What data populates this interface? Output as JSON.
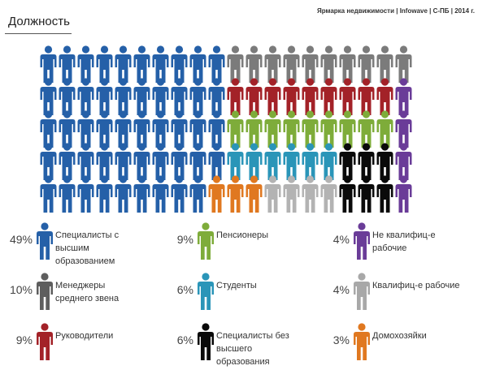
{
  "source": "Ярмарка недвижимости | Infowave | С-ПБ | 2014 г.",
  "title": "Должность",
  "chart_data": {
    "type": "pictogram",
    "unit": "icon",
    "rows": 5,
    "cols": 20,
    "categories": [
      {
        "label": "Специалисты с высшим образованием",
        "value": 49,
        "pct": "49%",
        "color": "#2560a8"
      },
      {
        "label": "Менеджеры среднего звена",
        "value": 10,
        "pct": "10%",
        "color": "#7b7b7b"
      },
      {
        "label": "Руководители",
        "value": 9,
        "pct": "9%",
        "color": "#a32228"
      },
      {
        "label": "Пенсионеры",
        "value": 9,
        "pct": "9%",
        "color": "#7eac3a"
      },
      {
        "label": "Студенты",
        "value": 6,
        "pct": "6%",
        "color": "#2a95b8"
      },
      {
        "label": "Специалисты без высшего образования",
        "value": 6,
        "pct": "6%",
        "color": "#0a0a0a"
      },
      {
        "label": "Не квалифиц-е рабочие",
        "value": 4,
        "pct": "4%",
        "color": "#6a3c98"
      },
      {
        "label": "Квалифиц-е рабочие",
        "value": 4,
        "pct": "4%",
        "color": "#b3b3b3"
      },
      {
        "label": "Домохозяйки",
        "value": 3,
        "pct": "3%",
        "color": "#e07820"
      }
    ],
    "grid_rows": [
      [
        "Специалисты с высшим образованием",
        "Специалисты с высшим образованием",
        "Специалисты с высшим образованием",
        "Специалисты с высшим образованием",
        "Специалисты с высшим образованием",
        "Специалисты с высшим образованием",
        "Специалисты с высшим образованием",
        "Специалисты с высшим образованием",
        "Специалисты с высшим образованием",
        "Специалисты с высшим образованием",
        "Менеджеры среднего звена",
        "Менеджеры среднего звена",
        "Менеджеры среднего звена",
        "Менеджеры среднего звена",
        "Менеджеры среднего звена",
        "Менеджеры среднего звена",
        "Менеджеры среднего звена",
        "Менеджеры среднего звена",
        "Менеджеры среднего звена",
        "Менеджеры среднего звена"
      ],
      [
        "Специалисты с высшим образованием",
        "Специалисты с высшим образованием",
        "Специалисты с высшим образованием",
        "Специалисты с высшим образованием",
        "Специалисты с высшим образованием",
        "Специалисты с высшим образованием",
        "Специалисты с высшим образованием",
        "Специалисты с высшим образованием",
        "Специалисты с высшим образованием",
        "Специалисты с высшим образованием",
        "Руководители",
        "Руководители",
        "Руководители",
        "Руководители",
        "Руководители",
        "Руководители",
        "Руководители",
        "Руководители",
        "Руководители",
        "Не квалифиц-е рабочие"
      ],
      [
        "Специалисты с высшим образованием",
        "Специалисты с высшим образованием",
        "Специалисты с высшим образованием",
        "Специалисты с высшим образованием",
        "Специалисты с высшим образованием",
        "Специалисты с высшим образованием",
        "Специалисты с высшим образованием",
        "Специалисты с высшим образованием",
        "Специалисты с высшим образованием",
        "Специалисты с высшим образованием",
        "Пенсионеры",
        "Пенсионеры",
        "Пенсионеры",
        "Пенсионеры",
        "Пенсионеры",
        "Пенсионеры",
        "Пенсионеры",
        "Пенсионеры",
        "Пенсионеры",
        "Не квалифиц-е рабочие"
      ],
      [
        "Специалисты с высшим образованием",
        "Специалисты с высшим образованием",
        "Специалисты с высшим образованием",
        "Специалисты с высшим образованием",
        "Специалисты с высшим образованием",
        "Специалисты с высшим образованием",
        "Специалисты с высшим образованием",
        "Специалисты с высшим образованием",
        "Специалисты с высшим образованием",
        "Специалисты с высшим образованием",
        "Студенты",
        "Студенты",
        "Студенты",
        "Студенты",
        "Студенты",
        "Студенты",
        "Специалисты без высшего образования",
        "Специалисты без высшего образования",
        "Специалисты без высшего образования",
        "Не квалифиц-е рабочие"
      ],
      [
        "Специалисты с высшим образованием",
        "Специалисты с высшим образованием",
        "Специалисты с высшим образованием",
        "Специалисты с высшим образованием",
        "Специалисты с высшим образованием",
        "Специалисты с высшим образованием",
        "Специалисты с высшим образованием",
        "Специалисты с высшим образованием",
        "Специалисты с высшим образованием",
        "Домохозяйки",
        "Домохозяйки",
        "Домохозяйки",
        "Квалифиц-е рабочие",
        "Квалифиц-е рабочие",
        "Квалифиц-е рабочие",
        "Квалифиц-е рабочие",
        "Специалисты без высшего образования",
        "Специалисты без высшего образования",
        "Специалисты без высшего образования",
        "Не квалифиц-е рабочие"
      ]
    ]
  },
  "legend": [
    {
      "pct": "49%",
      "text": "Специалисты с высшим образованием",
      "color": "#2560a8",
      "icon": "person-icon"
    },
    {
      "pct": "9%",
      "text": "Пенсионеры",
      "color": "#7eac3a",
      "icon": "person-icon"
    },
    {
      "pct": "4%",
      "text": "Не квалифиц-е рабочие",
      "color": "#6a3c98",
      "icon": "person-icon"
    },
    {
      "pct": "10%",
      "text": "Менеджеры среднего звена",
      "color": "#5e5e5e",
      "icon": "person-icon"
    },
    {
      "pct": "6%",
      "text": "Студенты",
      "color": "#2a95b8",
      "icon": "person-icon"
    },
    {
      "pct": "4%",
      "text": "Квалифиц-е рабочие",
      "color": "#a8a8a8",
      "icon": "person-icon"
    },
    {
      "pct": "9%",
      "text": "Руководители",
      "color": "#a32228",
      "icon": "person-icon"
    },
    {
      "pct": "6%",
      "text": "Специалисты без высшего образования",
      "color": "#0a0a0a",
      "icon": "person-icon"
    },
    {
      "pct": "3%",
      "text": "Домохозяйки",
      "color": "#e07820",
      "icon": "person-icon"
    }
  ]
}
